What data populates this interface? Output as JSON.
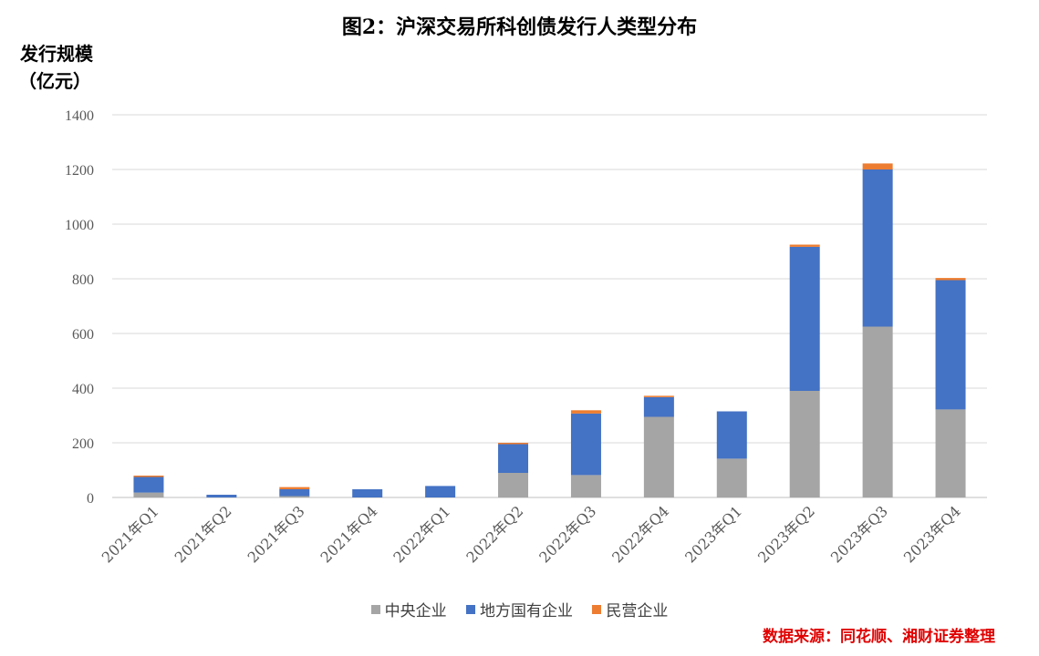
{
  "chart_data": {
    "type": "bar",
    "stacked": true,
    "title": "图2：沪深交易所科创债发行人类型分布",
    "ylabel_line1": "发行规模",
    "ylabel_line2": "（亿元）",
    "xlabel": "",
    "ylim": [
      0,
      1400
    ],
    "yticks": [
      0,
      200,
      400,
      600,
      800,
      1000,
      1200,
      1400
    ],
    "grid": true,
    "legend_position": "bottom",
    "categories": [
      "2021年Q1",
      "2021年Q2",
      "2021年Q3",
      "2021年Q4",
      "2022年Q1",
      "2022年Q2",
      "2022年Q3",
      "2022年Q4",
      "2023年Q1",
      "2023年Q2",
      "2023年Q3",
      "2023年Q4"
    ],
    "series": [
      {
        "name": "中央企业",
        "color": "#a5a5a5",
        "values": [
          18,
          0,
          5,
          0,
          0,
          90,
          82,
          295,
          142,
          390,
          625,
          322
        ]
      },
      {
        "name": "地方国有企业",
        "color": "#4472c4",
        "values": [
          57,
          10,
          25,
          30,
          42,
          105,
          225,
          72,
          173,
          527,
          575,
          473
        ]
      },
      {
        "name": "民营企业",
        "color": "#ed7d31",
        "values": [
          5,
          0,
          8,
          0,
          0,
          5,
          12,
          5,
          0,
          8,
          22,
          8
        ]
      }
    ]
  },
  "source": "数据来源：同花顺、湘财证券整理"
}
